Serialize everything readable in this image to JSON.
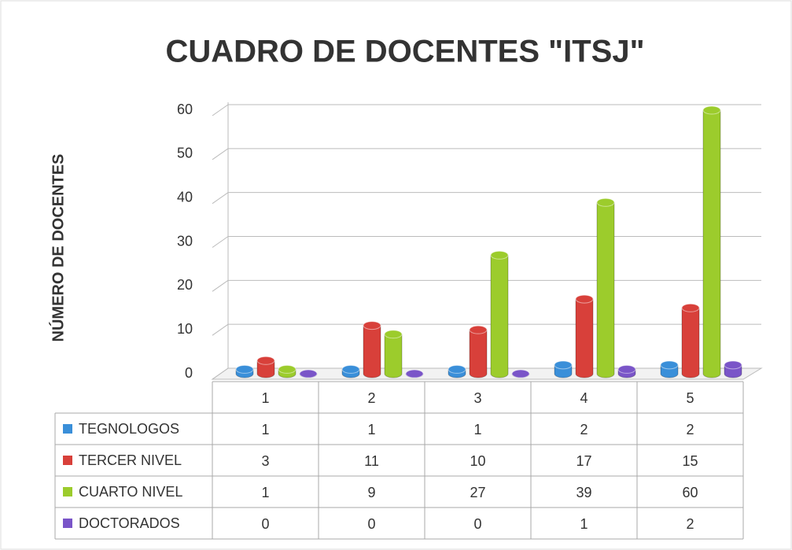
{
  "chart_data": {
    "type": "bar3d",
    "title": "CUADRO DE DOCENTES \"ITSJ\"",
    "y_label": "NÚMERO DE DOCENTES",
    "categories": [
      "1",
      "2",
      "3",
      "4",
      "5"
    ],
    "series": [
      {
        "name": "TEGNOLOGOS",
        "color": "#3a8fd9",
        "values": [
          1,
          1,
          1,
          2,
          2
        ]
      },
      {
        "name": "TERCER NIVEL",
        "color": "#d8403a",
        "values": [
          3,
          11,
          10,
          17,
          15
        ]
      },
      {
        "name": "CUARTO NIVEL",
        "color": "#9ccc2c",
        "values": [
          1,
          9,
          27,
          39,
          60
        ]
      },
      {
        "name": "DOCTORADOS",
        "color": "#7a55c8",
        "values": [
          0,
          0,
          0,
          1,
          2
        ]
      }
    ],
    "ylim": [
      0,
      60
    ],
    "yticks": [
      0,
      10,
      20,
      30,
      40,
      50,
      60
    ],
    "grid": true
  }
}
